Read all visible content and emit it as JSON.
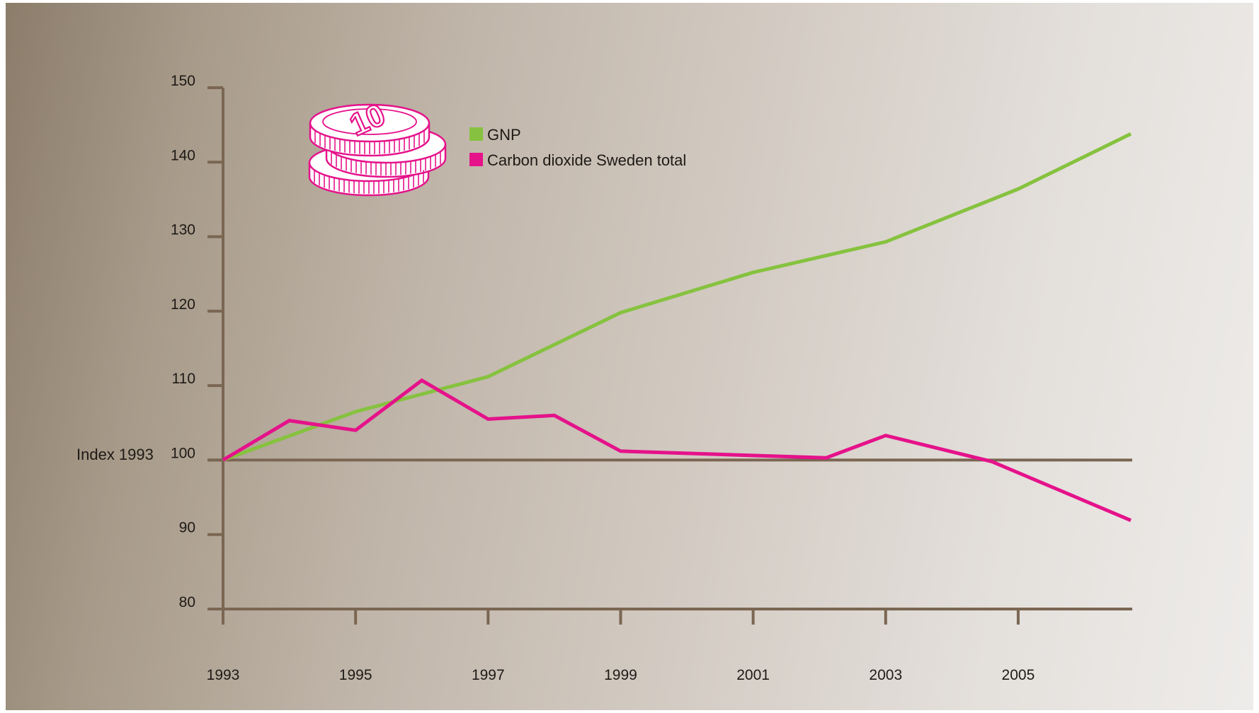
{
  "chart_data": {
    "type": "line",
    "title": "",
    "xlabel": "",
    "ylabel": "Index 1993",
    "x": [
      1993,
      1994,
      1995,
      1996,
      1997,
      1998,
      1999,
      2001,
      2002.1,
      2003,
      2004.6,
      2006.7
    ],
    "xlim": [
      1993,
      2006.7
    ],
    "ylim": [
      80,
      150
    ],
    "x_ticks": [
      "1993",
      "1995",
      "1997",
      "1999",
      "2001",
      "2003",
      "2005"
    ],
    "y_ticks": [
      "80",
      "90",
      "100",
      "110",
      "120",
      "130",
      "140",
      "150"
    ],
    "baseline": 100,
    "legend_position": "top-left",
    "grid": false,
    "series": [
      {
        "name": "GNP",
        "color": "#86c23f",
        "x": [
          1993,
          1995,
          1997,
          1998,
          1999,
          2001,
          2003,
          2005,
          2006.7
        ],
        "values": [
          100,
          106.5,
          111.2,
          115.5,
          119.8,
          125.2,
          129.3,
          136.4,
          143.8
        ]
      },
      {
        "name": "Carbon dioxide Sweden total",
        "color": "#e5128a",
        "x": [
          1993,
          1994,
          1995,
          1996,
          1997,
          1998,
          1999,
          2002.1,
          2003,
          2004.6,
          2006.7
        ],
        "values": [
          100,
          105.3,
          104,
          110.7,
          105.5,
          106,
          101.2,
          100.3,
          103.3,
          99.8,
          91.9
        ]
      }
    ]
  },
  "colors": {
    "axis": "#7a6652",
    "coin": "#e5128a"
  },
  "icon": "coin-stack-icon",
  "coin_text": "10"
}
